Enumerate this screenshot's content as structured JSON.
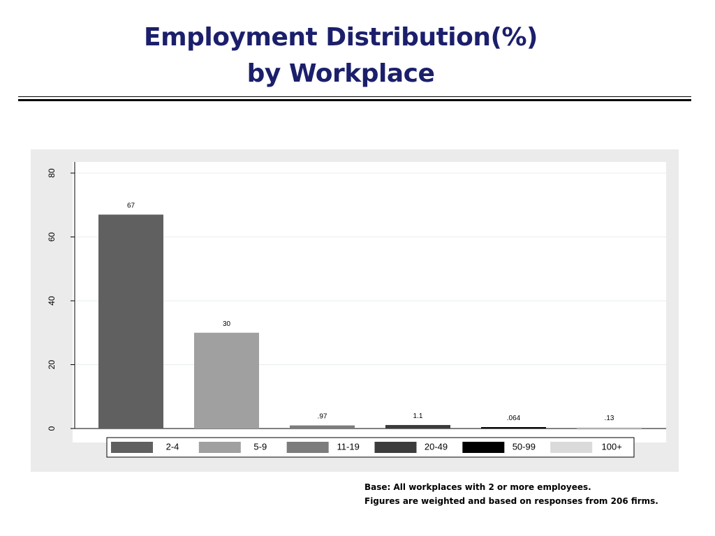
{
  "title": {
    "line1": "Employment Distribution(%)",
    "line2": "by Workplace"
  },
  "footnote": {
    "line1": "Base: All workplaces with 2 or more employees.",
    "line2": "Figures are weighted and based on responses from 206 firms."
  },
  "chart_data": {
    "type": "bar",
    "categories": [
      "2-4",
      "5-9",
      "11-19",
      "20-49",
      "50-99",
      "100+"
    ],
    "values": [
      67,
      30,
      0.97,
      1.1,
      0.064,
      0.13
    ],
    "value_labels": [
      "67",
      "30",
      ".97",
      "1.1",
      ".064",
      ".13"
    ],
    "colors": [
      "#606060",
      "#a0a0a0",
      "#7c7c7c",
      "#3c3c3c",
      "#000000",
      "#dadada"
    ],
    "yticks": [
      0,
      20,
      40,
      60,
      80
    ],
    "ylim": [
      0,
      80
    ],
    "grid": true,
    "legend": "bottom",
    "xlabel": "",
    "ylabel": ""
  }
}
